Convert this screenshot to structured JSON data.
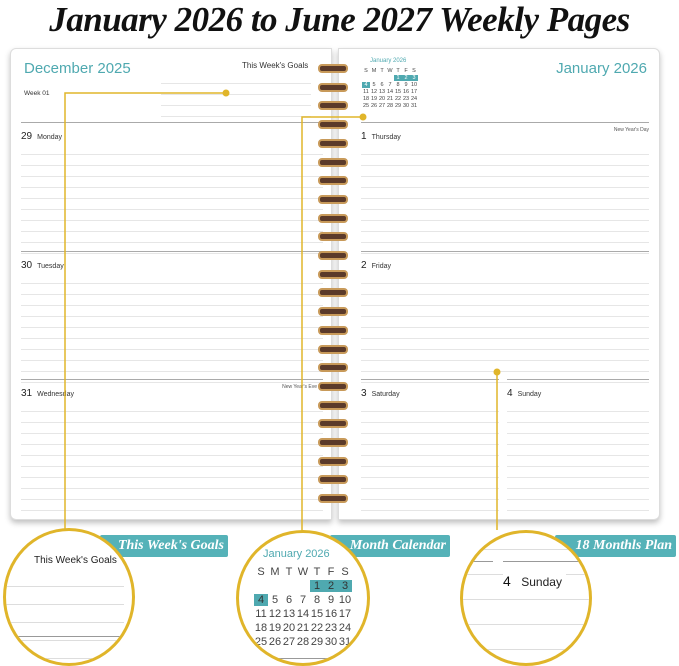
{
  "title": "January 2026 to June 2027 Weekly Pages",
  "accent_color": "#4fa9b0",
  "callout_color": "#e0b52a",
  "left_page": {
    "month": "December 2025",
    "goals_label": "This Week's Goals",
    "week": "Week 01",
    "days": [
      {
        "num": "29",
        "name": "Monday",
        "holiday": ""
      },
      {
        "num": "30",
        "name": "Tuesday",
        "holiday": ""
      },
      {
        "num": "31",
        "name": "Wednesday",
        "holiday": "New Year's Eve"
      }
    ]
  },
  "right_page": {
    "month": "January 2026",
    "mini_calendar": {
      "title": "January 2026",
      "weekdays": [
        "S",
        "M",
        "T",
        "W",
        "T",
        "F",
        "S"
      ],
      "cells": [
        "",
        "",
        "",
        "",
        "1",
        "2",
        "3",
        "4",
        "5",
        "6",
        "7",
        "8",
        "9",
        "10",
        "11",
        "12",
        "13",
        "14",
        "15",
        "16",
        "17",
        "18",
        "19",
        "20",
        "21",
        "22",
        "23",
        "24",
        "25",
        "26",
        "27",
        "28",
        "29",
        "30",
        "31"
      ],
      "highlighted": [
        "1",
        "2",
        "3",
        "4"
      ]
    },
    "days": [
      {
        "num": "1",
        "name": "Thursday",
        "holiday": "New Year's Day"
      },
      {
        "num": "2",
        "name": "Friday",
        "holiday": ""
      },
      {
        "num": "3",
        "name": "Saturday",
        "holiday": ""
      },
      {
        "num": "4",
        "name": "Sunday",
        "holiday": ""
      }
    ]
  },
  "callouts": [
    {
      "banner": "This Week's Goals",
      "zoom_text": "This Week's Goals"
    },
    {
      "banner": "Month Calendar",
      "zoom_text": "January 2026"
    },
    {
      "banner": "18 Monthls Plan",
      "zoom_num": "4",
      "zoom_day": "Sunday"
    }
  ]
}
